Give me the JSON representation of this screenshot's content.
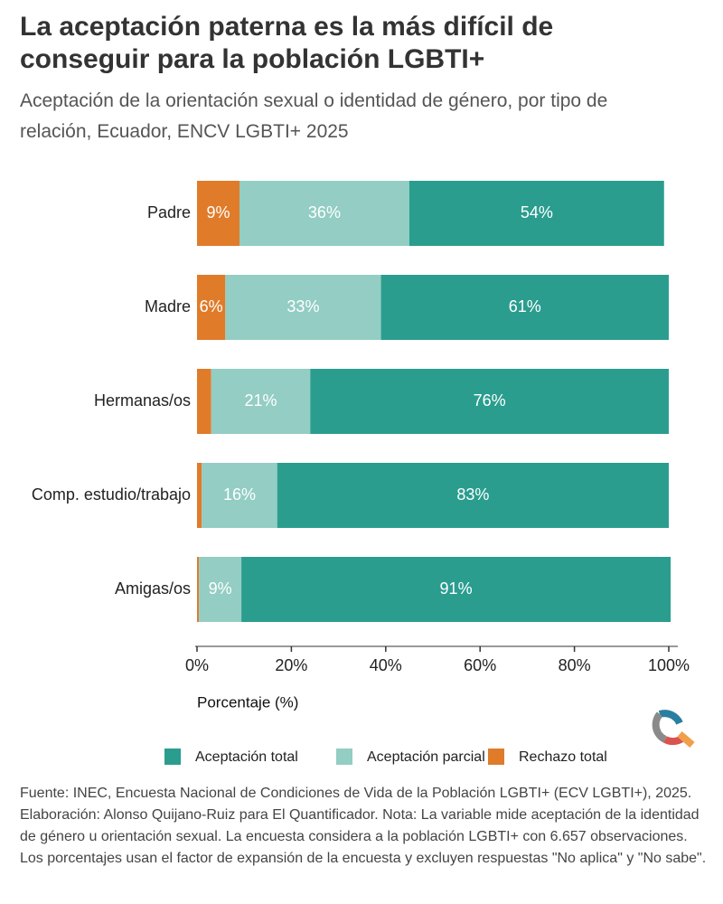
{
  "chart_data": {
    "type": "stacked-barh",
    "title": "La aceptación paterna es la más difícil de conseguir para la población LGBTI+",
    "subtitle": "Aceptación de la orientación sexual o identidad de género, por tipo de relación, Ecuador, ENCV LGBTI+ 2025",
    "x_label": "Porcentaje (%)",
    "categories": [
      "Padre",
      "Madre",
      "Hermanas/os",
      "Comp. estudio/trabajo",
      "Amigas/os"
    ],
    "series": [
      {
        "name": "Aceptación total",
        "color": "#2a9d8f",
        "values": [
          54,
          61,
          76,
          83,
          91
        ],
        "value_labels": [
          "54%",
          "61%",
          "76%",
          "83%",
          "91%"
        ]
      },
      {
        "name": "Aceptación parcial",
        "color": "#93cdc3",
        "values": [
          36,
          33,
          21,
          16,
          9
        ],
        "value_labels": [
          "36%",
          "33%",
          "21%",
          "16%",
          "9%"
        ]
      },
      {
        "name": "Rechazo total",
        "color": "#e07b2a",
        "values": [
          9,
          6,
          3,
          1,
          0.4
        ],
        "value_labels": [
          "9%",
          "6%",
          null,
          null,
          null
        ]
      }
    ],
    "xlim": [
      0,
      100
    ],
    "xticks": [
      {
        "value": 0,
        "label": "0%"
      },
      {
        "value": 20,
        "label": "20%"
      },
      {
        "value": 40,
        "label": "40%"
      },
      {
        "value": 60,
        "label": "60%"
      },
      {
        "value": 80,
        "label": "80%"
      },
      {
        "value": 100,
        "label": "100%"
      }
    ],
    "source": "Fuente: INEC, Encuesta Nacional de Condiciones de Vida de la Población LGBTI+ (ECV LGBTI+), 2025. Elaboración: Alonso Quijano-Ruiz para El Quantificador. Nota: La variable mide aceptación de la identidad de género u orientación sexual. La encuesta considera a la población LGBTI+ con 6.657 observaciones. Los porcentajes usan el factor de expansión de la encuesta y excluyen respuestas \"No aplica\" y \"No sabe\"."
  }
}
